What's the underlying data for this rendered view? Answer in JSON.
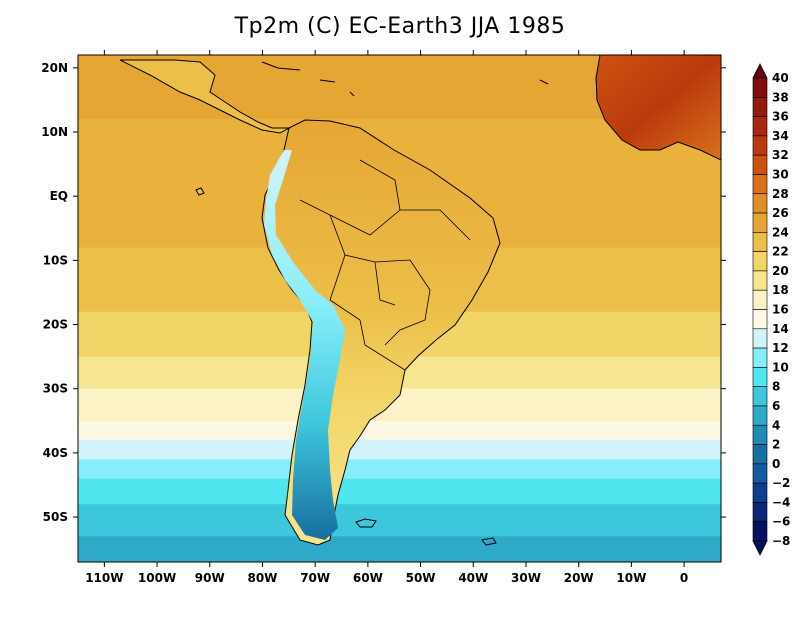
{
  "title": "Tp2m (C)  EC-Earth3 JJA 1985",
  "map": {
    "lon_range": [
      -115,
      7
    ],
    "lat_range": [
      -57,
      22
    ],
    "x_ticks": [
      {
        "lon": -110,
        "label": "110W"
      },
      {
        "lon": -100,
        "label": "100W"
      },
      {
        "lon": -90,
        "label": "90W"
      },
      {
        "lon": -80,
        "label": "80W"
      },
      {
        "lon": -70,
        "label": "70W"
      },
      {
        "lon": -60,
        "label": "60W"
      },
      {
        "lon": -50,
        "label": "50W"
      },
      {
        "lon": -40,
        "label": "40W"
      },
      {
        "lon": -30,
        "label": "30W"
      },
      {
        "lon": -20,
        "label": "20W"
      },
      {
        "lon": -10,
        "label": "10W"
      },
      {
        "lon": 0,
        "label": "0"
      }
    ],
    "y_ticks": [
      {
        "lat": 20,
        "label": "20N"
      },
      {
        "lat": 10,
        "label": "10N"
      },
      {
        "lat": 0,
        "label": "EQ"
      },
      {
        "lat": -10,
        "label": "10S"
      },
      {
        "lat": -20,
        "label": "20S"
      },
      {
        "lat": -30,
        "label": "30S"
      },
      {
        "lat": -40,
        "label": "40S"
      },
      {
        "lat": -50,
        "label": "50S"
      }
    ]
  },
  "colorbar": {
    "labels": [
      "40",
      "38",
      "36",
      "34",
      "32",
      "30",
      "28",
      "26",
      "24",
      "22",
      "20",
      "18",
      "16",
      "14",
      "12",
      "10",
      "8",
      "6",
      "4",
      "2",
      "0",
      "−2",
      "−4",
      "−6",
      "−8"
    ],
    "colors": [
      "#69000f",
      "#7f0f10",
      "#931a10",
      "#a8290f",
      "#bb3a0d",
      "#cd5210",
      "#d9711c",
      "#e08f26",
      "#e6a634",
      "#ecbf48",
      "#f2d567",
      "#f6e68f",
      "#fbf3c6",
      "#fdf8e3",
      "#d3f3fb",
      "#87eef9",
      "#4fe6f0",
      "#3dc7dc",
      "#2ea9c8",
      "#218bb4",
      "#176ea0",
      "#135aa0",
      "#0d3f8c",
      "#0a2675",
      "#061160"
    ]
  },
  "field": {
    "bands": [
      {
        "lat": 22,
        "color": "#e6a634"
      },
      {
        "lat": 12,
        "color": "#eab23c"
      },
      {
        "lat": -8,
        "color": "#ecbf48"
      },
      {
        "lat": -18,
        "color": "#f2d567"
      },
      {
        "lat": -25,
        "color": "#f6e68f"
      },
      {
        "lat": -30,
        "color": "#fbf3c6"
      },
      {
        "lat": -35,
        "color": "#fdf8e3"
      },
      {
        "lat": -38,
        "color": "#d3f3fb"
      },
      {
        "lat": -41,
        "color": "#87eef9"
      },
      {
        "lat": -44,
        "color": "#4fe6f0"
      },
      {
        "lat": -48,
        "color": "#3dc7dc"
      },
      {
        "lat": -53,
        "color": "#2ea9c8"
      },
      {
        "lat": -57,
        "color": "#218bb4"
      }
    ]
  }
}
